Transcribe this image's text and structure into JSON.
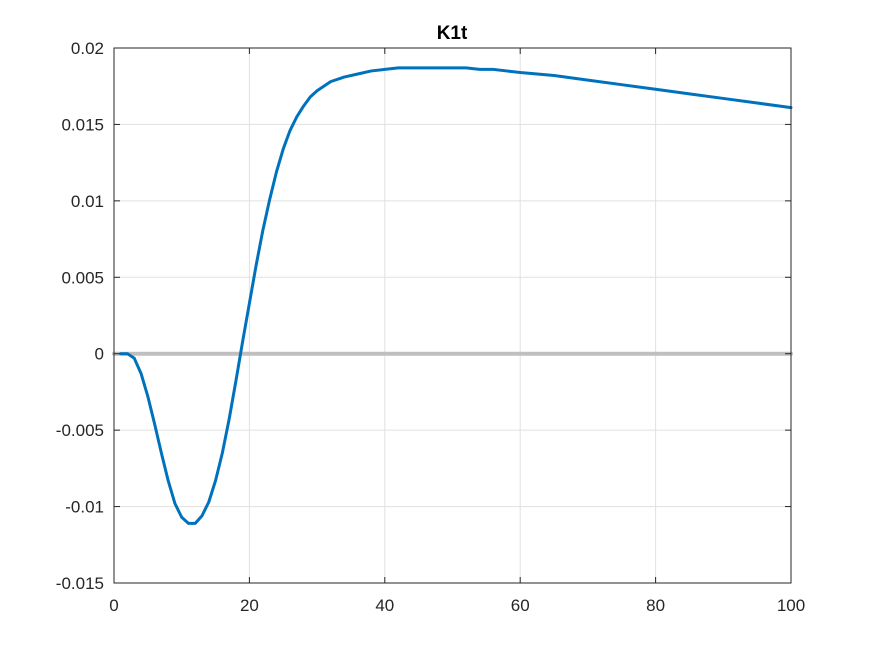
{
  "chart_data": {
    "type": "line",
    "title": "K1t",
    "xlabel": "",
    "ylabel": "",
    "xlim": [
      0,
      100
    ],
    "ylim": [
      -0.015,
      0.02
    ],
    "grid": true,
    "x_ticks": [
      0,
      20,
      40,
      60,
      80,
      100
    ],
    "x_tick_labels": [
      "0",
      "20",
      "40",
      "60",
      "80",
      "100"
    ],
    "y_ticks": [
      -0.015,
      -0.01,
      -0.005,
      0,
      0.005,
      0.01,
      0.015,
      0.02
    ],
    "y_tick_labels": [
      "-0.015",
      "-0.01",
      "-0.005",
      "0",
      "0.005",
      "0.01",
      "0.015",
      "0.02"
    ],
    "series": [
      {
        "color": "#0072BD",
        "x": [
          1,
          2,
          3,
          4,
          5,
          6,
          7,
          8,
          9,
          10,
          11,
          12,
          13,
          14,
          15,
          16,
          17,
          18,
          19,
          20,
          21,
          22,
          23,
          24,
          25,
          26,
          27,
          28,
          29,
          30,
          32,
          34,
          36,
          38,
          40,
          42,
          44,
          46,
          48,
          50,
          52,
          54,
          56,
          58,
          60,
          65,
          70,
          75,
          80,
          85,
          90,
          95,
          100
        ],
        "y": [
          0,
          0,
          -0.0003,
          -0.0013,
          -0.0028,
          -0.0046,
          -0.0065,
          -0.0083,
          -0.0098,
          -0.0107,
          -0.0111,
          -0.0111,
          -0.0106,
          -0.0097,
          -0.0083,
          -0.0065,
          -0.0043,
          -0.0018,
          0.0008,
          0.0033,
          0.0058,
          0.0081,
          0.0101,
          0.0119,
          0.0134,
          0.0146,
          0.0155,
          0.0162,
          0.0168,
          0.0172,
          0.0178,
          0.0181,
          0.0183,
          0.0185,
          0.0186,
          0.0187,
          0.0187,
          0.0187,
          0.0187,
          0.0187,
          0.0187,
          0.0186,
          0.0186,
          0.0185,
          0.0184,
          0.0182,
          0.0179,
          0.0176,
          0.0173,
          0.017,
          0.0167,
          0.0164,
          0.0161
        ]
      },
      {
        "color": "#BFBFBF",
        "x": [
          0,
          100
        ],
        "y": [
          0,
          0
        ]
      }
    ]
  }
}
